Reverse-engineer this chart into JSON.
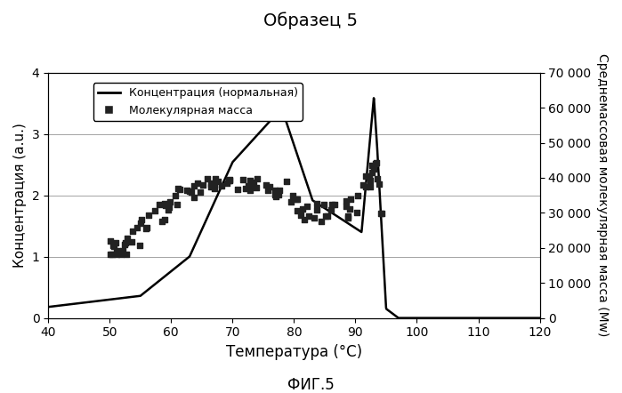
{
  "title": "Образец 5",
  "xlabel": "Температура (°C)",
  "ylabel_left": "Концентрация (a.u.)",
  "ylabel_right": "Среднемассовая молекулярная масса (Mw)",
  "caption": "ФИГ.5",
  "xlim": [
    40,
    120
  ],
  "ylim_left": [
    0.0,
    4.0
  ],
  "ylim_right": [
    0,
    70000
  ],
  "xticks": [
    40,
    50,
    60,
    70,
    80,
    90,
    100,
    110,
    120
  ],
  "yticks_left": [
    0.0,
    1.0,
    2.0,
    3.0,
    4.0
  ],
  "yticks_right": [
    0,
    10000,
    20000,
    30000,
    40000,
    50000,
    60000,
    70000
  ],
  "legend_conc": "Концентрация (нормальная)",
  "legend_mw": "Молекулярная масса",
  "color_line": "#000000",
  "color_scatter": "#222222",
  "background_color": "#ffffff"
}
